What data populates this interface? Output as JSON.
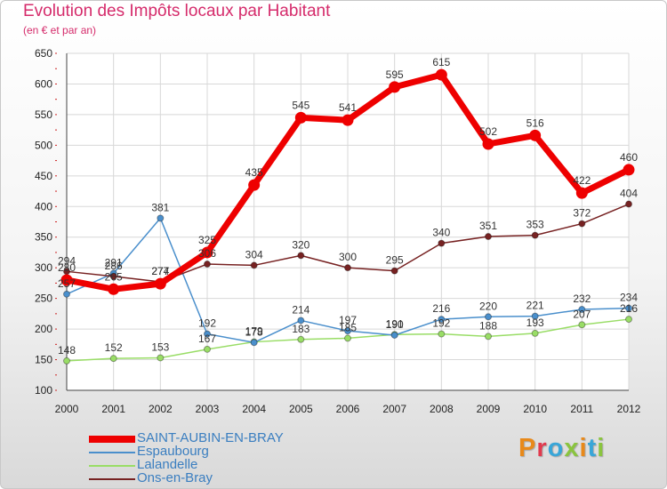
{
  "title": "Evolution des Impôts locaux par Habitant",
  "subtitle": "(en € et par an)",
  "brand": {
    "text": "Proxiti",
    "letter_colors": [
      "#e8891a",
      "#e23a4e",
      "#39a6d8",
      "#8ac43f",
      "#e8891a",
      "#39a6d8",
      "#8ac43f"
    ]
  },
  "chart_data": {
    "type": "line",
    "x": [
      "2000",
      "2001",
      "2002",
      "2003",
      "2004",
      "2005",
      "2006",
      "2007",
      "2008",
      "2009",
      "2010",
      "2011",
      "2012"
    ],
    "ylim": [
      100,
      650
    ],
    "yticks": [
      100,
      150,
      200,
      250,
      300,
      350,
      400,
      450,
      500,
      550,
      600,
      650
    ],
    "grid": true,
    "legend_position": "bottom-left",
    "series": [
      {
        "name": "SAINT-AUBIN-EN-BRAY",
        "color": "#ee0000",
        "values": [
          280,
          265,
          274,
          325,
          435,
          545,
          541,
          595,
          615,
          502,
          516,
          422,
          460
        ]
      },
      {
        "name": "Espaubourg",
        "color": "#4a8fcc",
        "values": [
          257,
          291,
          381,
          192,
          178,
          214,
          197,
          190,
          216,
          220,
          221,
          232,
          234
        ]
      },
      {
        "name": "Lalandelle",
        "color": "#99dd66",
        "values": [
          148,
          152,
          153,
          167,
          179,
          183,
          185,
          191,
          192,
          188,
          193,
          207,
          216
        ]
      },
      {
        "name": "Ons-en-Bray",
        "color": "#772222",
        "values": [
          294,
          286,
          277,
          306,
          304,
          320,
          300,
          295,
          340,
          351,
          353,
          372,
          404
        ]
      }
    ]
  }
}
